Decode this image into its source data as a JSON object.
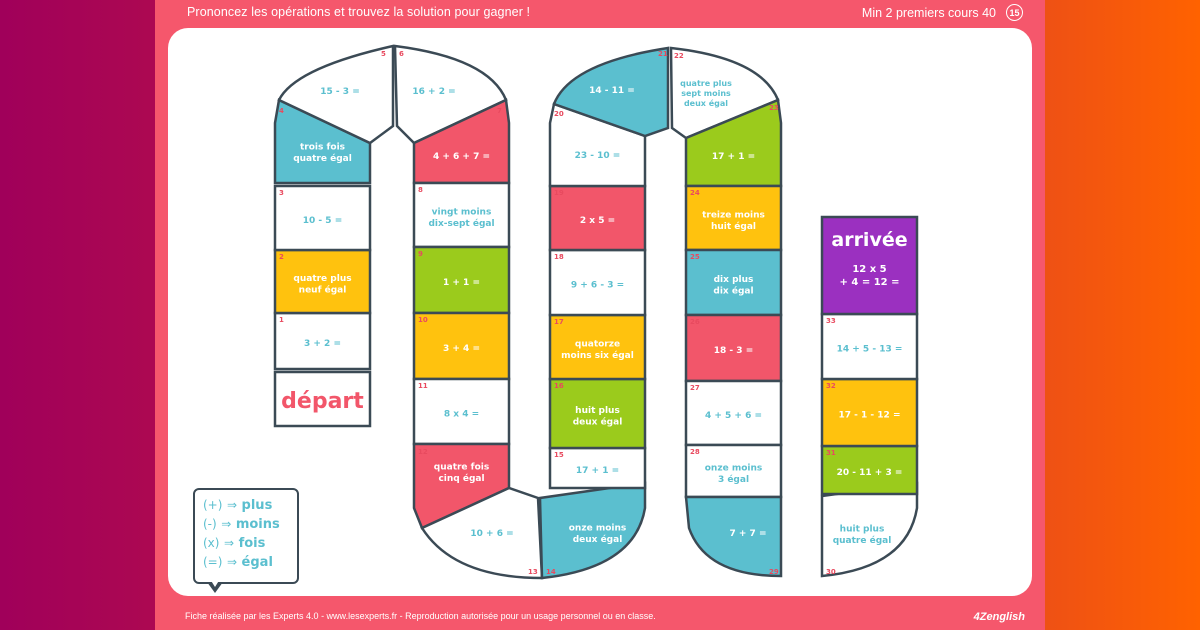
{
  "header": {
    "title": "Prononcez les opérations et trouvez la solution pour gagner !",
    "level": "Min 2 premiers cours 40",
    "page_number": "15"
  },
  "footer": {
    "credits": "Fiche réalisée par les Experts 4.0 - www.lesexperts.fr - Reproduction autorisée pour un usage personnel ou en classe.",
    "logo": "4Zenglish"
  },
  "colors": {
    "background_start": "#a0005a",
    "background_end": "#ff6200",
    "frame": "#f5576c",
    "border": "#3b4a55",
    "red": "#f2566a",
    "blue": "#5bbfcf",
    "yellow": "#ffc20e",
    "green": "#9bcb1c",
    "purple": "#9b30c0",
    "white": "#ffffff",
    "text_blue": "#5bbfcf"
  },
  "legend": {
    "rows": [
      {
        "symbol": "(+)",
        "arrow": "⇒",
        "word": "plus"
      },
      {
        "symbol": "(-)",
        "arrow": "⇒",
        "word": "moins"
      },
      {
        "symbol": "(x)",
        "arrow": "⇒",
        "word": "fois"
      },
      {
        "symbol": "(=)",
        "arrow": "⇒",
        "word": "égal"
      }
    ]
  },
  "board": {
    "start_label": "départ",
    "finish_label": "arrivée",
    "finish_operation": [
      "12 x 5",
      "+ 4 = 12 ="
    ],
    "cells": [
      {
        "n": "1",
        "text": [
          "3 + 2 ="
        ],
        "color": "white"
      },
      {
        "n": "2",
        "text": [
          "quatre plus",
          "neuf égal"
        ],
        "color": "yellow"
      },
      {
        "n": "3",
        "text": [
          "10 - 5 ="
        ],
        "color": "white"
      },
      {
        "n": "4",
        "text": [
          "trois fois",
          "quatre égal"
        ],
        "color": "blue"
      },
      {
        "n": "5",
        "text": [
          "15 - 3 ="
        ],
        "color": "white"
      },
      {
        "n": "6",
        "text": [
          "16 + 2 ="
        ],
        "color": "white"
      },
      {
        "n": "7",
        "text": [
          "4 + 6 + 7 ="
        ],
        "color": "red"
      },
      {
        "n": "8",
        "text": [
          "vingt moins",
          "dix-sept égal"
        ],
        "color": "white"
      },
      {
        "n": "9",
        "text": [
          "1 + 1 ="
        ],
        "color": "green"
      },
      {
        "n": "10",
        "text": [
          "3 + 4 ="
        ],
        "color": "yellow"
      },
      {
        "n": "11",
        "text": [
          "8 x 4 ="
        ],
        "color": "white"
      },
      {
        "n": "12",
        "text": [
          "quatre fois",
          "cinq égal"
        ],
        "color": "red"
      },
      {
        "n": "13",
        "text": [
          "10 + 6 ="
        ],
        "color": "white"
      },
      {
        "n": "14",
        "text": [
          "onze moins",
          "deux égal"
        ],
        "color": "blue"
      },
      {
        "n": "15",
        "text": [
          "17 + 1 ="
        ],
        "color": "white"
      },
      {
        "n": "16",
        "text": [
          "huit plus",
          "deux égal"
        ],
        "color": "green"
      },
      {
        "n": "17",
        "text": [
          "quatorze",
          "moins six égal"
        ],
        "color": "yellow"
      },
      {
        "n": "18",
        "text": [
          "9 + 6 - 3 ="
        ],
        "color": "white"
      },
      {
        "n": "19",
        "text": [
          "2 x 5 ="
        ],
        "color": "red"
      },
      {
        "n": "20",
        "text": [
          "23 - 10 ="
        ],
        "color": "white"
      },
      {
        "n": "21",
        "text": [
          "14 - 11 ="
        ],
        "color": "blue"
      },
      {
        "n": "22",
        "text": [
          "quatre plus",
          "sept moins",
          "deux égal"
        ],
        "color": "white"
      },
      {
        "n": "23",
        "text": [
          "17 + 1 ="
        ],
        "color": "green"
      },
      {
        "n": "24",
        "text": [
          "treize moins",
          "huit égal"
        ],
        "color": "yellow"
      },
      {
        "n": "25",
        "text": [
          "dix plus",
          "dix égal"
        ],
        "color": "blue"
      },
      {
        "n": "26",
        "text": [
          "18 - 3 ="
        ],
        "color": "red"
      },
      {
        "n": "27",
        "text": [
          "4 + 5 + 6 ="
        ],
        "color": "white"
      },
      {
        "n": "28",
        "text": [
          "onze moins",
          "3 égal"
        ],
        "color": "white"
      },
      {
        "n": "29",
        "text": [
          "7 + 7 ="
        ],
        "color": "blue"
      },
      {
        "n": "30",
        "text": [
          "huit plus",
          "quatre égal"
        ],
        "color": "white"
      },
      {
        "n": "31",
        "text": [
          "20 - 11 + 3 ="
        ],
        "color": "green"
      },
      {
        "n": "32",
        "text": [
          "17 - 1 - 12 ="
        ],
        "color": "yellow"
      },
      {
        "n": "33",
        "text": [
          "14 + 5 - 13 ="
        ],
        "color": "white"
      }
    ]
  }
}
